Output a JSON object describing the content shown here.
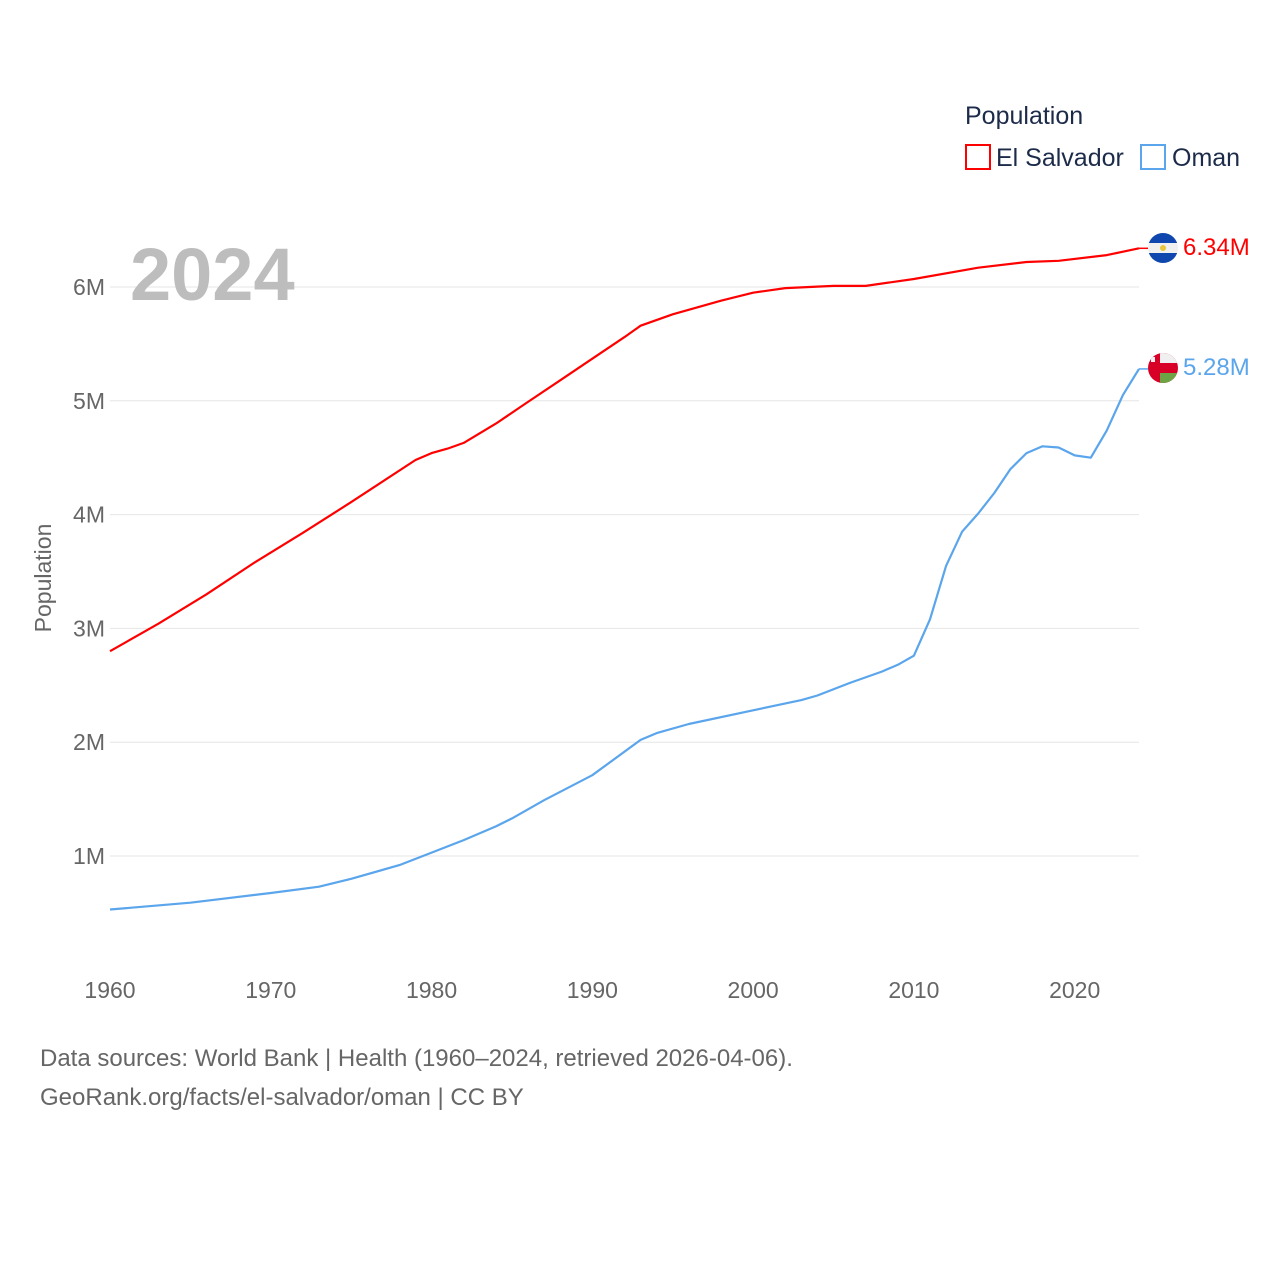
{
  "chart_data": {
    "type": "line",
    "ylabel": "Population",
    "xlabel": "",
    "year_label": "2024",
    "legend": {
      "title": "Population",
      "placement": "top-right"
    },
    "xlim": [
      1960,
      2024
    ],
    "ylim": [
      0,
      6500000
    ],
    "x_ticks": [
      "1960",
      "1970",
      "1980",
      "1990",
      "2000",
      "2010",
      "2020"
    ],
    "y_ticks": [
      {
        "value": 1000000,
        "label": "1M"
      },
      {
        "value": 2000000,
        "label": "2M"
      },
      {
        "value": 3000000,
        "label": "3M"
      },
      {
        "value": 4000000,
        "label": "4M"
      },
      {
        "value": 5000000,
        "label": "5M"
      },
      {
        "value": 6000000,
        "label": "6M"
      }
    ],
    "grid": true,
    "series": [
      {
        "name": "El Salvador",
        "color": "#ff0000",
        "end_label": "6.34M",
        "flag": "el-salvador-flag",
        "x": [
          1960,
          1963,
          1966,
          1969,
          1972,
          1975,
          1979,
          1980,
          1981,
          1982,
          1984,
          1986,
          1988,
          1990,
          1992,
          1993,
          1995,
          1998,
          2000,
          2002,
          2005,
          2007,
          2010,
          2014,
          2017,
          2019,
          2022,
          2024
        ],
        "y": [
          2.8,
          3.04,
          3.3,
          3.58,
          3.84,
          4.11,
          4.48,
          4.54,
          4.58,
          4.63,
          4.8,
          4.99,
          5.18,
          5.37,
          5.56,
          5.66,
          5.76,
          5.88,
          5.95,
          5.99,
          6.01,
          6.01,
          6.07,
          6.17,
          6.22,
          6.23,
          6.28,
          6.34
        ]
      },
      {
        "name": "Oman",
        "color": "#5aa5ec",
        "end_label": "5.28M",
        "flag": "oman-flag",
        "x": [
          1960,
          1965,
          1970,
          1973,
          1975,
          1978,
          1980,
          1982,
          1984,
          1985,
          1987,
          1990,
          1993,
          1994,
          1996,
          2000,
          2003,
          2004,
          2006,
          2008,
          2009,
          2010,
          2011,
          2012,
          2013,
          2014,
          2015,
          2016,
          2017,
          2018,
          2019,
          2020,
          2021,
          2022,
          2023,
          2024
        ],
        "y": [
          0.53,
          0.59,
          0.675,
          0.73,
          0.8,
          0.92,
          1.03,
          1.14,
          1.26,
          1.33,
          1.49,
          1.71,
          2.02,
          2.08,
          2.16,
          2.28,
          2.37,
          2.41,
          2.52,
          2.62,
          2.68,
          2.76,
          3.08,
          3.55,
          3.85,
          4.01,
          4.19,
          4.4,
          4.54,
          4.6,
          4.59,
          4.52,
          4.5,
          4.74,
          5.05,
          5.28
        ]
      }
    ]
  },
  "footer": {
    "line1": "Data sources: World Bank | Health (1960–2024, retrieved 2026-04-06).",
    "line2": "GeoRank.org/facts/el-salvador/oman | CC BY"
  }
}
